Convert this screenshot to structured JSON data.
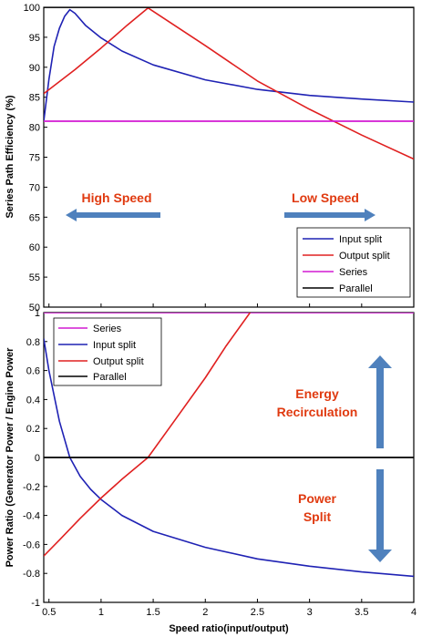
{
  "colors": {
    "input_split": "#1f22b4",
    "output_split": "#e02020",
    "series": "#d21ad2",
    "parallel": "#000000",
    "annotation_text": "#e03a10",
    "arrow": "#4f81bd",
    "frame": "#000000"
  },
  "chart_data": [
    {
      "type": "line",
      "ylabel": "Series Path Efficiency (%)",
      "xlabel": "",
      "xlim": [
        0.45,
        4.0
      ],
      "ylim": [
        50,
        100
      ],
      "xticks": [
        0.5,
        1,
        1.5,
        2,
        2.5,
        3,
        3.5,
        4
      ],
      "yticks": [
        50,
        55,
        60,
        65,
        70,
        75,
        80,
        85,
        90,
        95,
        100
      ],
      "grid": false,
      "legend": {
        "placement": "bottom-right",
        "entries": [
          "Input split",
          "Output split",
          "Series",
          "Parallel"
        ]
      },
      "annotations": [
        {
          "text": "High Speed",
          "arrow": "left"
        },
        {
          "text": "Low Speed",
          "arrow": "right"
        }
      ],
      "series": [
        {
          "name": "Input split",
          "color_key": "input_split",
          "x": [
            0.45,
            0.5,
            0.55,
            0.6,
            0.65,
            0.7,
            0.75,
            0.85,
            1.0,
            1.2,
            1.5,
            2.0,
            2.5,
            3.0,
            3.5,
            4.0
          ],
          "y": [
            81,
            88,
            93.5,
            96.5,
            98.5,
            99.6,
            99,
            97,
            94.9,
            92.7,
            90.4,
            87.9,
            86.3,
            85.3,
            84.7,
            84.2
          ]
        },
        {
          "name": "Output split",
          "color_key": "output_split",
          "x": [
            0.45,
            0.75,
            1.0,
            1.25,
            1.45,
            2.0,
            2.5,
            3.0,
            3.5,
            4.0
          ],
          "y": [
            85.6,
            89.6,
            93.2,
            97.0,
            99.9,
            93.6,
            87.7,
            83.0,
            78.7,
            74.7
          ]
        },
        {
          "name": "Series",
          "color_key": "series",
          "x": [
            0.45,
            4.0
          ],
          "y": [
            81,
            81
          ]
        },
        {
          "name": "Parallel",
          "color_key": "parallel",
          "x": [
            0.45,
            4.0
          ],
          "y": [
            100,
            100
          ]
        }
      ]
    },
    {
      "type": "line",
      "ylabel": "Power Ratio (Generator Power / Engine Power",
      "xlabel": "Speed ratio(input/output)",
      "xlim": [
        0.45,
        4.0
      ],
      "ylim": [
        -1,
        1
      ],
      "xticks": [
        0.5,
        1,
        1.5,
        2,
        2.5,
        3,
        3.5,
        4
      ],
      "yticks": [
        -1,
        -0.8,
        -0.6,
        -0.4,
        -0.2,
        0,
        0.2,
        0.4,
        0.6,
        0.8,
        1
      ],
      "grid": false,
      "legend": {
        "placement": "top-left",
        "entries": [
          "Series",
          "Input split",
          "Output split",
          "Parallel"
        ]
      },
      "annotations": [
        {
          "text": "Energy Recirculation",
          "lines": [
            "Energy",
            "Recirculation"
          ],
          "arrow": "up"
        },
        {
          "text": "Power Split",
          "lines": [
            "Power",
            "Split"
          ],
          "arrow": "down"
        }
      ],
      "series": [
        {
          "name": "Series",
          "color_key": "series",
          "x": [
            0.45,
            4.0
          ],
          "y": [
            1,
            1
          ]
        },
        {
          "name": "Input split",
          "color_key": "input_split",
          "x": [
            0.45,
            0.5,
            0.6,
            0.7,
            0.8,
            0.9,
            1.0,
            1.2,
            1.5,
            2.0,
            2.5,
            3.0,
            3.5,
            4.0
          ],
          "y": [
            0.82,
            0.6,
            0.25,
            0.0,
            -0.13,
            -0.22,
            -0.29,
            -0.4,
            -0.51,
            -0.62,
            -0.7,
            -0.75,
            -0.79,
            -0.82
          ]
        },
        {
          "name": "Output split",
          "color_key": "output_split",
          "x": [
            0.45,
            0.6,
            0.8,
            1.0,
            1.2,
            1.45,
            1.7,
            2.0,
            2.2,
            2.43
          ],
          "y": [
            -0.68,
            -0.57,
            -0.42,
            -0.28,
            -0.15,
            0.0,
            0.25,
            0.55,
            0.77,
            1.0
          ]
        },
        {
          "name": "Parallel",
          "color_key": "parallel",
          "x": [
            0.45,
            4.0
          ],
          "y": [
            0,
            0
          ]
        }
      ]
    }
  ]
}
